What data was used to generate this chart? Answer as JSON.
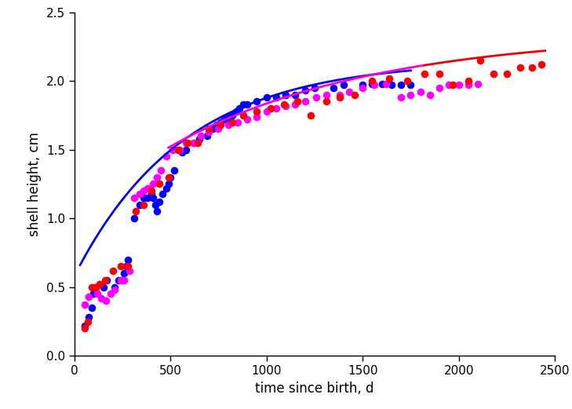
{
  "xlabel": "time since birth, d",
  "ylabel": "shell height, cm",
  "xlim": [
    0,
    2500
  ],
  "ylim": [
    0,
    2.5
  ],
  "xticks": [
    0,
    500,
    1000,
    1500,
    2000,
    2500
  ],
  "yticks": [
    0,
    0.5,
    1.0,
    1.5,
    2.0,
    2.5
  ],
  "background_color": "#ffffff",
  "cohort_1994_color": "#0000ff",
  "cohort_1995_color": "#ff00ff",
  "cohort_1996_color": "#ff0000",
  "curve1_color": "#0000ee",
  "curve2_color": "#ff00cc",
  "curve2b_color": "#ee0000",
  "marker_size": 48,
  "linewidth": 2.0,
  "blue_curve_Hinf": 2.15,
  "blue_curve_k": 0.00175,
  "blue_curve_t0": -180,
  "blue_curve_tstart": 30,
  "blue_curve_tend": 1750,
  "pink_curve_Hinf": 2.35,
  "pink_curve_k": 0.00095,
  "pink_curve_t0": -600,
  "pink_curve_tstart": 490,
  "pink_curve_tend": 2450,
  "pink_to_red_split": 1820,
  "cohort_1994_x": [
    55,
    75,
    90,
    100,
    110,
    130,
    150,
    170,
    210,
    230,
    250,
    260,
    270,
    280,
    310,
    340,
    360,
    380,
    400,
    410,
    420,
    430,
    440,
    460,
    480,
    490,
    500,
    520,
    560,
    580,
    620,
    650,
    690,
    720,
    740,
    760,
    780,
    800,
    820,
    840,
    860,
    880,
    900,
    950,
    1000,
    1050,
    1100,
    1150,
    1200,
    1250,
    1350,
    1400,
    1500,
    1550,
    1600,
    1650,
    1700,
    1750
  ],
  "cohort_1994_y": [
    0.22,
    0.28,
    0.35,
    0.45,
    0.5,
    0.52,
    0.5,
    0.55,
    0.5,
    0.55,
    0.55,
    0.6,
    0.65,
    0.7,
    1.0,
    1.1,
    1.15,
    1.15,
    1.18,
    1.15,
    1.1,
    1.05,
    1.12,
    1.18,
    1.22,
    1.25,
    1.3,
    1.35,
    1.48,
    1.5,
    1.55,
    1.58,
    1.6,
    1.65,
    1.68,
    1.7,
    1.72,
    1.73,
    1.75,
    1.78,
    1.8,
    1.83,
    1.83,
    1.85,
    1.88,
    1.88,
    1.9,
    1.9,
    1.93,
    1.95,
    1.95,
    1.97,
    1.97,
    1.98,
    1.98,
    1.97,
    1.97,
    1.97
  ],
  "cohort_1995_x": [
    55,
    75,
    100,
    120,
    140,
    165,
    190,
    210,
    240,
    260,
    285,
    310,
    340,
    360,
    380,
    410,
    430,
    450,
    480,
    510,
    550,
    580,
    620,
    660,
    700,
    750,
    800,
    850,
    900,
    950,
    1000,
    1050,
    1100,
    1150,
    1200,
    1260,
    1310,
    1380,
    1430,
    1500,
    1560,
    1620,
    1700,
    1750,
    1800,
    1850,
    1900,
    1950,
    2000,
    2050,
    2100
  ],
  "cohort_1995_y": [
    0.37,
    0.43,
    0.5,
    0.45,
    0.42,
    0.4,
    0.45,
    0.48,
    0.55,
    0.55,
    0.62,
    1.15,
    1.18,
    1.2,
    1.22,
    1.25,
    1.3,
    1.35,
    1.45,
    1.5,
    1.5,
    1.55,
    1.55,
    1.6,
    1.63,
    1.65,
    1.68,
    1.7,
    1.72,
    1.74,
    1.78,
    1.8,
    1.82,
    1.83,
    1.85,
    1.88,
    1.9,
    1.9,
    1.92,
    1.95,
    1.97,
    1.98,
    1.88,
    1.9,
    1.92,
    1.9,
    1.95,
    1.97,
    1.97,
    1.97,
    1.98
  ],
  "cohort_1996_x": [
    55,
    70,
    90,
    110,
    130,
    160,
    200,
    240,
    280,
    320,
    360,
    400,
    440,
    490,
    540,
    590,
    640,
    700,
    760,
    820,
    880,
    950,
    1020,
    1090,
    1160,
    1230,
    1310,
    1380,
    1460,
    1550,
    1640,
    1730,
    1820,
    1900,
    1970,
    2050,
    2110,
    2180,
    2250,
    2320,
    2380,
    2430
  ],
  "cohort_1996_y": [
    0.2,
    0.25,
    0.5,
    0.5,
    0.52,
    0.55,
    0.62,
    0.65,
    0.65,
    1.05,
    1.1,
    1.2,
    1.25,
    1.3,
    1.5,
    1.55,
    1.55,
    1.65,
    1.68,
    1.7,
    1.75,
    1.78,
    1.8,
    1.83,
    1.85,
    1.75,
    1.85,
    1.88,
    1.9,
    2.0,
    2.02,
    2.0,
    2.05,
    2.05,
    1.97,
    2.0,
    2.15,
    2.05,
    2.05,
    2.1,
    2.1,
    2.12
  ]
}
